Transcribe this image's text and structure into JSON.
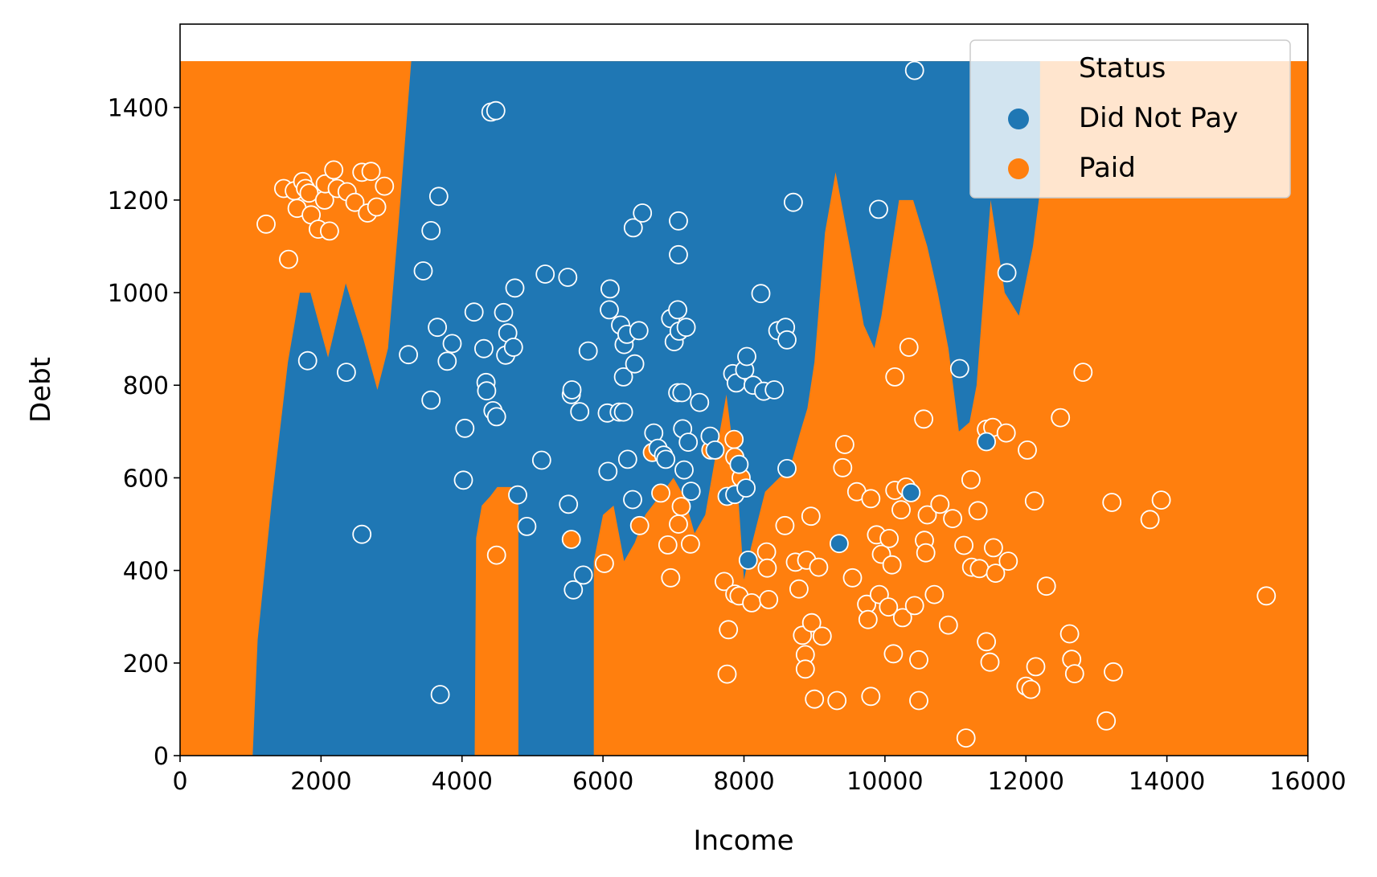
{
  "chart_data": {
    "type": "scatter",
    "title": "",
    "xlabel": "Income",
    "ylabel": "Debt",
    "xlim": [
      0,
      16000
    ],
    "ylim": [
      0,
      1580
    ],
    "x_ticks": [
      0,
      2000,
      4000,
      6000,
      8000,
      10000,
      12000,
      14000,
      16000
    ],
    "y_ticks": [
      0,
      200,
      400,
      600,
      800,
      1000,
      1200,
      1400
    ],
    "grid": false,
    "legend": {
      "placement": "top-right",
      "title": "Status",
      "entries": [
        {
          "label": "Did Not Pay",
          "color": "#1f77b4"
        },
        {
          "label": "Paid",
          "color": "#ff7f0e"
        }
      ]
    },
    "decision_regions": {
      "extent": {
        "x": [
          0,
          16000
        ],
        "y": [
          0,
          1500
        ]
      },
      "background_class": "Paid",
      "regions": [
        {
          "class": "Did Not Pay",
          "boundary": [
            [
              1030,
              0
            ],
            [
              1100,
              250
            ],
            [
              1300,
              550
            ],
            [
              1530,
              850
            ],
            [
              1700,
              1000
            ],
            [
              1850,
              1000
            ],
            [
              2100,
              860
            ],
            [
              2350,
              1020
            ],
            [
              2600,
              900
            ],
            [
              2800,
              790
            ],
            [
              2950,
              880
            ],
            [
              3100,
              1150
            ],
            [
              3280,
              1500
            ],
            [
              12200,
              1500
            ],
            [
              12200,
              1220
            ],
            [
              12100,
              1100
            ],
            [
              11900,
              950
            ],
            [
              11700,
              1000
            ],
            [
              11500,
              1200
            ],
            [
              11300,
              800
            ],
            [
              11200,
              720
            ],
            [
              11050,
              700
            ],
            [
              10900,
              880
            ],
            [
              10750,
              1000
            ],
            [
              10600,
              1100
            ],
            [
              10400,
              1200
            ],
            [
              10200,
              1200
            ],
            [
              10100,
              1100
            ],
            [
              9950,
              950
            ],
            [
              9850,
              880
            ],
            [
              9700,
              930
            ],
            [
              9500,
              1100
            ],
            [
              9300,
              1260
            ],
            [
              9150,
              1130
            ],
            [
              9000,
              850
            ],
            [
              8900,
              750
            ],
            [
              8800,
              700
            ],
            [
              8650,
              620
            ],
            [
              8500,
              600
            ],
            [
              8300,
              570
            ],
            [
              8100,
              450
            ],
            [
              8000,
              380
            ],
            [
              7900,
              600
            ],
            [
              7750,
              780
            ],
            [
              7600,
              650
            ],
            [
              7450,
              520
            ],
            [
              7300,
              480
            ],
            [
              7150,
              560
            ],
            [
              7000,
              600
            ],
            [
              6800,
              560
            ],
            [
              6600,
              520
            ],
            [
              6450,
              460
            ],
            [
              6300,
              420
            ],
            [
              6150,
              540
            ],
            [
              6000,
              520
            ],
            [
              5870,
              420
            ],
            [
              5870,
              0
            ],
            [
              4800,
              0
            ],
            [
              4800,
              540
            ],
            [
              4700,
              580
            ],
            [
              4500,
              580
            ],
            [
              4400,
              560
            ],
            [
              4280,
              540
            ],
            [
              4200,
              470
            ],
            [
              4180,
              0
            ]
          ]
        },
        {
          "class": "Did Not Pay",
          "boundary": [
            [
              10250,
              0
            ],
            [
              10250,
              0
            ]
          ]
        }
      ]
    },
    "series": [
      {
        "name": "Paid",
        "color": "#ff7f0e",
        "points": [
          [
            1220,
            1148
          ],
          [
            1470,
            1225
          ],
          [
            1540,
            1072
          ],
          [
            1620,
            1220
          ],
          [
            1660,
            1182
          ],
          [
            1740,
            1240
          ],
          [
            1780,
            1225
          ],
          [
            1830,
            1215
          ],
          [
            1860,
            1168
          ],
          [
            1960,
            1137
          ],
          [
            2050,
            1200
          ],
          [
            2060,
            1235
          ],
          [
            2120,
            1133
          ],
          [
            2180,
            1265
          ],
          [
            2230,
            1225
          ],
          [
            2370,
            1218
          ],
          [
            2480,
            1195
          ],
          [
            2580,
            1260
          ],
          [
            2660,
            1172
          ],
          [
            2710,
            1262
          ],
          [
            2790,
            1185
          ],
          [
            2900,
            1230
          ],
          [
            4490,
            433
          ],
          [
            5550,
            467
          ],
          [
            6020,
            415
          ],
          [
            6520,
            497
          ],
          [
            6700,
            655
          ],
          [
            6820,
            567
          ],
          [
            6920,
            455
          ],
          [
            6960,
            384
          ],
          [
            7070,
            500
          ],
          [
            7110,
            538
          ],
          [
            7240,
            457
          ],
          [
            7530,
            660
          ],
          [
            7720,
            376
          ],
          [
            7780,
            272
          ],
          [
            7760,
            176
          ],
          [
            7860,
            683
          ],
          [
            7870,
            645
          ],
          [
            7870,
            349
          ],
          [
            7930,
            345
          ],
          [
            7960,
            600
          ],
          [
            8110,
            330
          ],
          [
            8320,
            440
          ],
          [
            8330,
            405
          ],
          [
            8350,
            337
          ],
          [
            8580,
            497
          ],
          [
            8730,
            418
          ],
          [
            8780,
            360
          ],
          [
            8830,
            260
          ],
          [
            8870,
            218
          ],
          [
            8870,
            187
          ],
          [
            8890,
            422
          ],
          [
            8950,
            517
          ],
          [
            8960,
            287
          ],
          [
            9000,
            122
          ],
          [
            9060,
            407
          ],
          [
            9110,
            258
          ],
          [
            9320,
            119
          ],
          [
            9400,
            622
          ],
          [
            9430,
            672
          ],
          [
            9540,
            384
          ],
          [
            9600,
            570
          ],
          [
            9740,
            327
          ],
          [
            9760,
            294
          ],
          [
            9800,
            555
          ],
          [
            9800,
            128
          ],
          [
            9880,
            477
          ],
          [
            9920,
            348
          ],
          [
            9950,
            435
          ],
          [
            10050,
            321
          ],
          [
            10060,
            469
          ],
          [
            10100,
            412
          ],
          [
            10120,
            220
          ],
          [
            10140,
            818
          ],
          [
            10140,
            573
          ],
          [
            10230,
            531
          ],
          [
            10250,
            298
          ],
          [
            10300,
            580
          ],
          [
            10340,
            882
          ],
          [
            10420,
            324
          ],
          [
            10480,
            207
          ],
          [
            10480,
            119
          ],
          [
            10550,
            727
          ],
          [
            10560,
            465
          ],
          [
            10580,
            438
          ],
          [
            10600,
            520
          ],
          [
            10700,
            348
          ],
          [
            10780,
            543
          ],
          [
            10900,
            282
          ],
          [
            10960,
            512
          ],
          [
            11120,
            454
          ],
          [
            11150,
            38
          ],
          [
            11220,
            596
          ],
          [
            11230,
            407
          ],
          [
            11320,
            529
          ],
          [
            11340,
            404
          ],
          [
            11440,
            246
          ],
          [
            11440,
            705
          ],
          [
            11490,
            202
          ],
          [
            11530,
            709
          ],
          [
            11540,
            449
          ],
          [
            11570,
            394
          ],
          [
            11720,
            697
          ],
          [
            11750,
            420
          ],
          [
            12000,
            150
          ],
          [
            12020,
            660
          ],
          [
            12070,
            143
          ],
          [
            12120,
            550
          ],
          [
            12140,
            192
          ],
          [
            12290,
            366
          ],
          [
            12490,
            730
          ],
          [
            12620,
            263
          ],
          [
            12650,
            208
          ],
          [
            12690,
            177
          ],
          [
            12810,
            828
          ],
          [
            13140,
            75
          ],
          [
            13220,
            547
          ],
          [
            13240,
            181
          ],
          [
            13760,
            510
          ],
          [
            13920,
            552
          ],
          [
            15410,
            345
          ]
        ]
      },
      {
        "name": "Did Not Pay",
        "color": "#1f77b4",
        "points": [
          [
            1810,
            853
          ],
          [
            2360,
            828
          ],
          [
            2580,
            478
          ],
          [
            3240,
            866
          ],
          [
            3450,
            1047
          ],
          [
            3560,
            1134
          ],
          [
            3560,
            768
          ],
          [
            3650,
            925
          ],
          [
            3670,
            1208
          ],
          [
            3690,
            132
          ],
          [
            3790,
            852
          ],
          [
            3860,
            890
          ],
          [
            4020,
            595
          ],
          [
            4040,
            707
          ],
          [
            4170,
            958
          ],
          [
            4310,
            879
          ],
          [
            4340,
            806
          ],
          [
            4350,
            788
          ],
          [
            4410,
            1390
          ],
          [
            4440,
            745
          ],
          [
            4480,
            1393
          ],
          [
            4490,
            732
          ],
          [
            4590,
            957
          ],
          [
            4620,
            865
          ],
          [
            4650,
            913
          ],
          [
            4730,
            882
          ],
          [
            4750,
            1010
          ],
          [
            4790,
            563
          ],
          [
            4920,
            495
          ],
          [
            5130,
            638
          ],
          [
            5180,
            1040
          ],
          [
            5500,
            1033
          ],
          [
            5510,
            543
          ],
          [
            5550,
            780
          ],
          [
            5560,
            790
          ],
          [
            5580,
            358
          ],
          [
            5670,
            743
          ],
          [
            5720,
            390
          ],
          [
            5790,
            874
          ],
          [
            6060,
            740
          ],
          [
            6070,
            614
          ],
          [
            6090,
            963
          ],
          [
            6100,
            1008
          ],
          [
            6230,
            742
          ],
          [
            6250,
            930
          ],
          [
            6290,
            818
          ],
          [
            6290,
            742
          ],
          [
            6300,
            888
          ],
          [
            6340,
            910
          ],
          [
            6350,
            640
          ],
          [
            6420,
            553
          ],
          [
            6430,
            1140
          ],
          [
            6450,
            846
          ],
          [
            6510,
            918
          ],
          [
            6560,
            1172
          ],
          [
            6720,
            697
          ],
          [
            6780,
            664
          ],
          [
            6860,
            649
          ],
          [
            6890,
            640
          ],
          [
            6960,
            944
          ],
          [
            7010,
            894
          ],
          [
            7060,
            784
          ],
          [
            7060,
            963
          ],
          [
            7070,
            1082
          ],
          [
            7070,
            1155
          ],
          [
            7080,
            917
          ],
          [
            7120,
            784
          ],
          [
            7130,
            706
          ],
          [
            7150,
            617
          ],
          [
            7180,
            925
          ],
          [
            7210,
            677
          ],
          [
            7250,
            571
          ],
          [
            7370,
            763
          ],
          [
            7520,
            690
          ],
          [
            7590,
            660
          ],
          [
            7760,
            560
          ],
          [
            7840,
            825
          ],
          [
            7870,
            564
          ],
          [
            7890,
            805
          ],
          [
            7930,
            629
          ],
          [
            8010,
            833
          ],
          [
            8030,
            578
          ],
          [
            8040,
            862
          ],
          [
            8060,
            422
          ],
          [
            8130,
            800
          ],
          [
            8240,
            998
          ],
          [
            8280,
            787
          ],
          [
            8430,
            790
          ],
          [
            8480,
            918
          ],
          [
            8590,
            925
          ],
          [
            8610,
            620
          ],
          [
            8610,
            898
          ],
          [
            8700,
            1195
          ],
          [
            9350,
            458
          ],
          [
            9910,
            1180
          ],
          [
            10370,
            568
          ],
          [
            10420,
            1480
          ],
          [
            11060,
            836
          ],
          [
            11440,
            678
          ],
          [
            11730,
            1043
          ]
        ]
      }
    ]
  }
}
